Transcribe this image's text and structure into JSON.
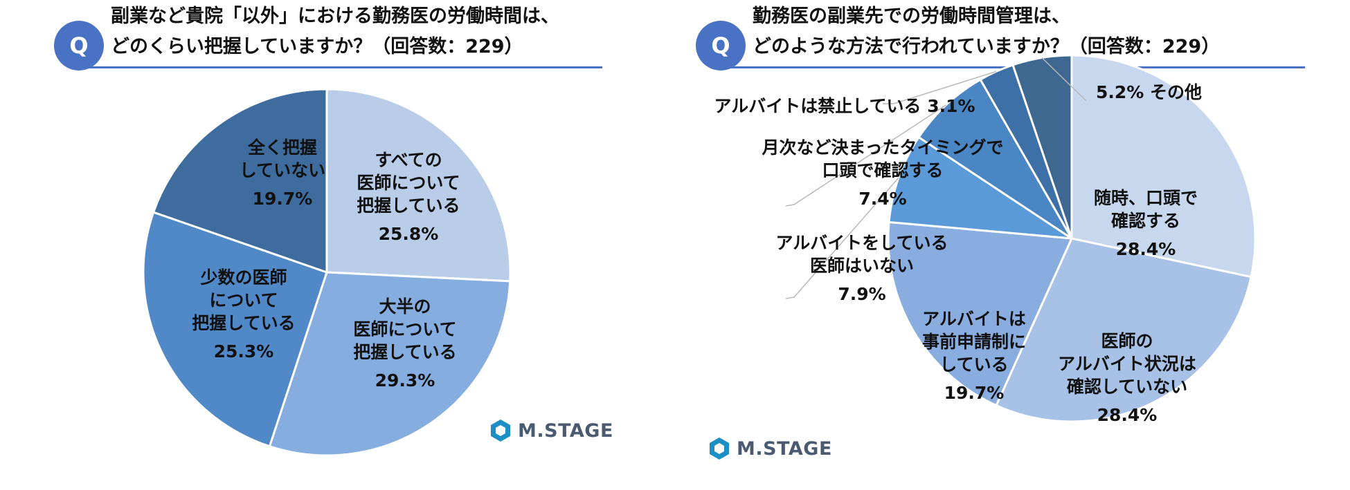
{
  "left": {
    "badge": "Q",
    "title_line1": "副業など貴院「以外」における勤務医の労働時間は、",
    "title_line2": "どのくらい把握していますか？（回答数：229）",
    "logo_text": "M.STAGE",
    "chart_data": {
      "type": "pie",
      "slices": [
        {
          "label": [
            "すべての",
            "医師について",
            "把握している"
          ],
          "value": 25.8,
          "value_text": "25.8%",
          "color": "#b9cde9"
        },
        {
          "label": [
            "大半の",
            "医師について",
            "把握している"
          ],
          "value": 29.3,
          "value_text": "29.3%",
          "color": "#86ade0"
        },
        {
          "label": [
            "少数の医師",
            "について",
            "把握している"
          ],
          "value": 25.3,
          "value_text": "25.3%",
          "color": "#5088c8"
        },
        {
          "label": [
            "全く把握",
            "していない"
          ],
          "value": 19.7,
          "value_text": "19.7%",
          "color": "#3e6c9e"
        }
      ]
    }
  },
  "right": {
    "badge": "Q",
    "title_line1": "勤務医の副業先での労働時間管理は、",
    "title_line2": "どのような方法で行われていますか？（回答数：229）",
    "logo_text": "M.STAGE",
    "chart_data": {
      "type": "pie",
      "slices": [
        {
          "label": [
            "随時、口頭で",
            "確認する"
          ],
          "value": 28.4,
          "value_text": "28.4%",
          "color": "#c6d7ee"
        },
        {
          "label": [
            "医師の",
            "アルバイト状況は",
            "確認していない"
          ],
          "value": 28.4,
          "value_text": "28.4%",
          "color": "#a7c2e6"
        },
        {
          "label": [
            "アルバイトは",
            "事前申請制に",
            "している"
          ],
          "value": 19.7,
          "value_text": "19.7%",
          "color": "#8aade0"
        },
        {
          "label": [
            "アルバイトをしている",
            "医師はいない"
          ],
          "value": 7.9,
          "value_text": "7.9%",
          "color": "#5a9ad8"
        },
        {
          "label": [
            "月次など決まったタイミングで",
            "口頭で確認する"
          ],
          "value": 7.4,
          "value_text": "7.4%",
          "color": "#4a86c4"
        },
        {
          "label": [
            "アルバイトは禁止している"
          ],
          "value": 3.1,
          "value_text": "3.1%",
          "color": "#3e70a8"
        },
        {
          "label": [
            "その他"
          ],
          "value": 5.2,
          "value_text": "5.2%",
          "color": "#3e6890"
        }
      ]
    }
  }
}
